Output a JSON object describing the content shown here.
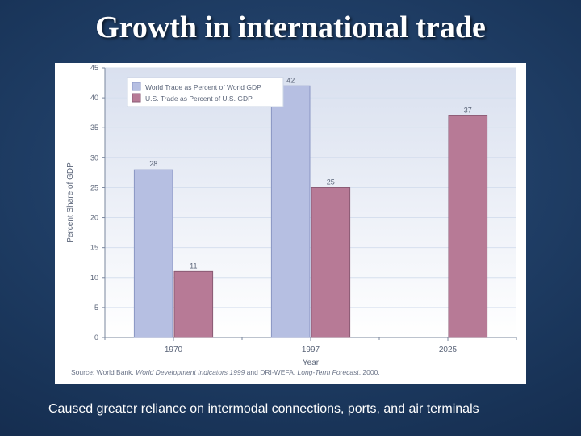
{
  "slide": {
    "title": "Growth in international trade",
    "caption": "Caused greater reliance on intermodal connections, ports, and air terminals"
  },
  "chart": {
    "type": "bar",
    "plot_background_top": "#d9e0ef",
    "plot_background_bottom": "#ffffff",
    "grid_color": "#d6dfee",
    "axis_color": "#7a879e",
    "panel_background": "#ffffff",
    "y_axis": {
      "label": "Percent Share of GDP",
      "label_fontsize": 10,
      "ylim": [
        0,
        45
      ],
      "tick_step": 5,
      "tick_fontsize": 9,
      "tick_color": "#5a6478"
    },
    "x_axis": {
      "label": "Year",
      "label_fontsize": 10,
      "categories": [
        "1970",
        "1997",
        "2025"
      ],
      "tick_fontsize": 10,
      "tick_color": "#5a6478"
    },
    "series": [
      {
        "name": "World Trade as Percent of World GDP",
        "color": "#b6bfe2",
        "border_color": "#8a96c4",
        "values": [
          28,
          42,
          null
        ]
      },
      {
        "name": "U.S. Trade as Percent of U.S. GDP",
        "color": "#b77a96",
        "border_color": "#8a5a74",
        "values": [
          11,
          25,
          37
        ]
      }
    ],
    "bar_label_fontsize": 9,
    "bar_label_color": "#5a6478",
    "legend": {
      "fontsize": 8.5,
      "swatch_size": 10
    },
    "source": {
      "text_prefix": "Source: World Bank, ",
      "italic1": "World Development Indicators 1999",
      "mid": " and DRI-WEFA, ",
      "italic2": "Long-Term Forecast",
      "suffix": ", 2000.",
      "fontsize": 8.5,
      "color": "#6b7488"
    }
  }
}
